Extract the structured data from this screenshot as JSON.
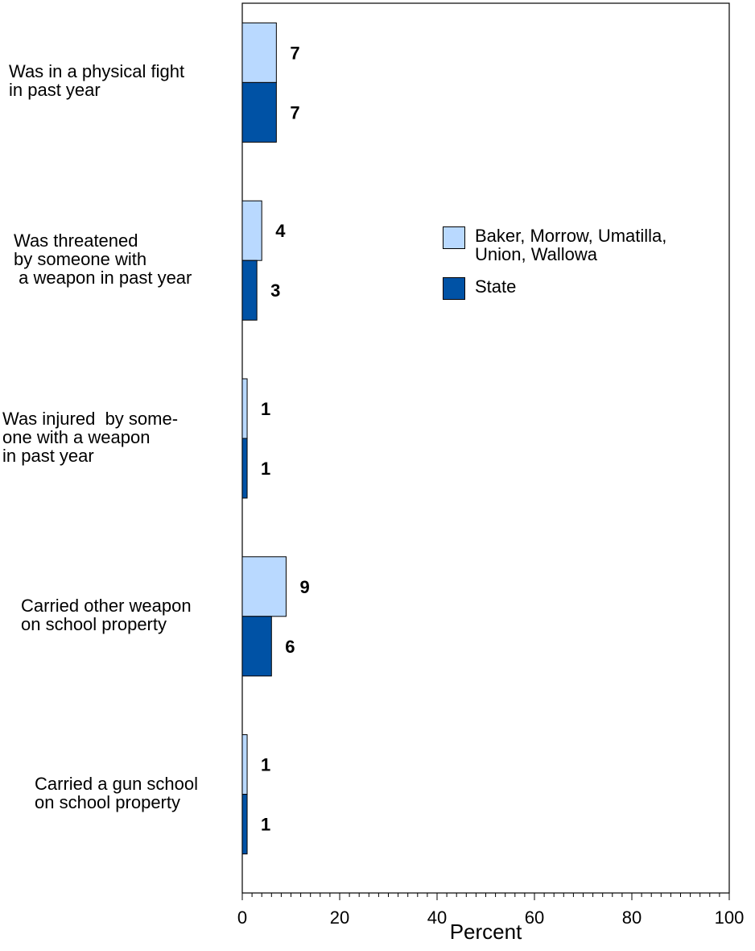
{
  "chart_data": {
    "type": "bar",
    "orientation": "horizontal",
    "title": "",
    "xlabel": "Percent",
    "ylabel": "",
    "xlim": [
      0,
      100
    ],
    "x_ticks": [
      0,
      20,
      40,
      60,
      80,
      100
    ],
    "minor_tick_step": 2,
    "grid": false,
    "legend_position": "right",
    "categories": [
      "Was in a physical fight\nin past year",
      "Was threatened\nby someone with\n a weapon in past year",
      "Was injured  by some-\none with a weapon\nin past year",
      "Carried other weapon\non school property",
      "Carried a gun school\non school property"
    ],
    "series": [
      {
        "name": "Baker, Morrow, Umatilla,\nUnion, Wallowa",
        "values": [
          7,
          4,
          1,
          9,
          1
        ],
        "color": "#b9d9ff"
      },
      {
        "name": "State",
        "values": [
          7,
          3,
          1,
          6,
          1
        ],
        "color": "#0052a5"
      }
    ]
  }
}
